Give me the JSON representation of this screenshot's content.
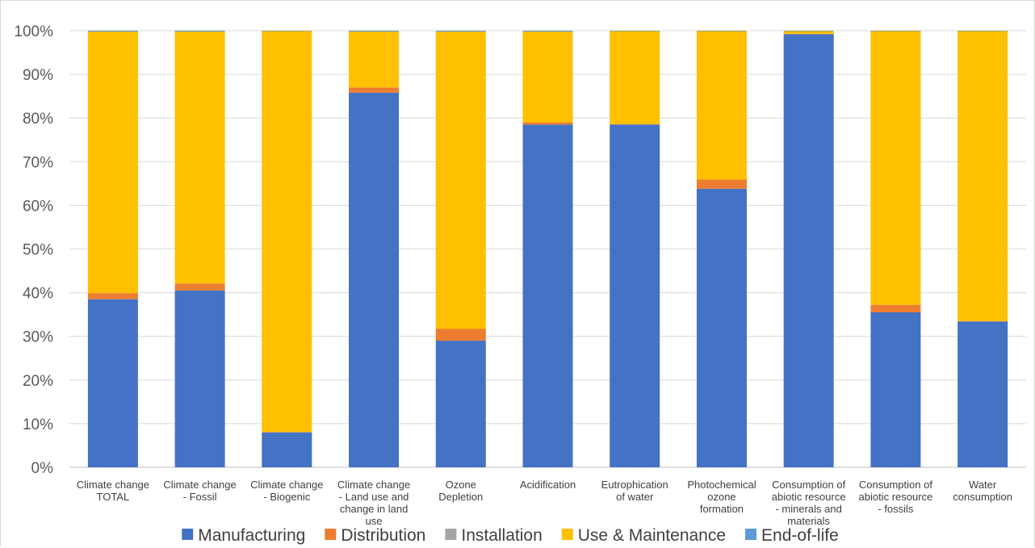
{
  "chart_data": {
    "type": "bar",
    "stacked": true,
    "percent": true,
    "title": "",
    "xlabel": "",
    "ylabel": "",
    "ylim": [
      0,
      100
    ],
    "yticks": [
      "0%",
      "10%",
      "20%",
      "30%",
      "40%",
      "50%",
      "60%",
      "70%",
      "80%",
      "90%",
      "100%"
    ],
    "grid": true,
    "legend_position": "bottom",
    "categories": [
      [
        "Climate change",
        "TOTAL"
      ],
      [
        "Climate change",
        "- Fossil"
      ],
      [
        "Climate change",
        "- Biogenic"
      ],
      [
        "Climate change",
        "- Land use and",
        "change in land",
        "use"
      ],
      [
        "Ozone",
        "Depletion"
      ],
      [
        "Acidification"
      ],
      [
        "Eutrophication",
        "of water"
      ],
      [
        "Photochemical",
        "ozone",
        "formation"
      ],
      [
        "Consumption of",
        "abiotic resource",
        "- minerals and",
        "materials"
      ],
      [
        "Consumption of",
        "abiotic resource",
        "- fossils"
      ],
      [
        "Water",
        "consumption"
      ]
    ],
    "series": [
      {
        "name": "Manufacturing",
        "color": "#4472c4",
        "values": [
          38.5,
          40.5,
          8.0,
          85.8,
          29.0,
          78.5,
          78.5,
          63.8,
          99.2,
          35.5,
          33.4
        ]
      },
      {
        "name": "Distribution",
        "color": "#ed7d31",
        "values": [
          1.4,
          1.6,
          0.1,
          1.2,
          2.7,
          0.5,
          0.1,
          2.1,
          0.1,
          1.7,
          0.1
        ]
      },
      {
        "name": "Installation",
        "color": "#a5a5a5",
        "values": [
          0.0,
          0.0,
          0.0,
          0.0,
          0.0,
          0.0,
          0.0,
          0.0,
          0.0,
          0.0,
          0.0
        ]
      },
      {
        "name": "Use & Maintenance",
        "color": "#ffc000",
        "values": [
          59.9,
          57.7,
          91.8,
          12.8,
          68.1,
          20.8,
          21.3,
          34.0,
          0.6,
          62.7,
          66.4
        ]
      },
      {
        "name": "End-of-life",
        "color": "#5b9bd5",
        "values": [
          0.2,
          0.2,
          0.1,
          0.2,
          0.2,
          0.2,
          0.1,
          0.1,
          0.1,
          0.1,
          0.1
        ]
      }
    ]
  }
}
